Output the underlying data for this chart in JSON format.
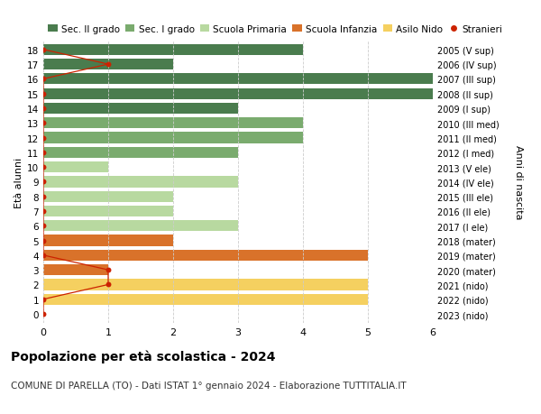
{
  "ages": [
    18,
    17,
    16,
    15,
    14,
    13,
    12,
    11,
    10,
    9,
    8,
    7,
    6,
    5,
    4,
    3,
    2,
    1,
    0
  ],
  "right_labels": [
    "2005 (V sup)",
    "2006 (IV sup)",
    "2007 (III sup)",
    "2008 (II sup)",
    "2009 (I sup)",
    "2010 (III med)",
    "2011 (II med)",
    "2012 (I med)",
    "2013 (V ele)",
    "2014 (IV ele)",
    "2015 (III ele)",
    "2016 (II ele)",
    "2017 (I ele)",
    "2018 (mater)",
    "2019 (mater)",
    "2020 (mater)",
    "2021 (nido)",
    "2022 (nido)",
    "2023 (nido)"
  ],
  "bar_values": [
    4,
    2,
    6,
    6,
    3,
    4,
    4,
    3,
    1,
    3,
    2,
    2,
    3,
    2,
    5,
    1,
    5,
    5,
    0
  ],
  "bar_colors": [
    "#4a7c4e",
    "#4a7c4e",
    "#4a7c4e",
    "#4a7c4e",
    "#4a7c4e",
    "#7aab6e",
    "#7aab6e",
    "#7aab6e",
    "#b8d9a0",
    "#b8d9a0",
    "#b8d9a0",
    "#b8d9a0",
    "#b8d9a0",
    "#d9722a",
    "#d9722a",
    "#d9722a",
    "#f5d060",
    "#f5d060",
    "#f5d060"
  ],
  "stranieri_values": [
    0,
    1,
    0,
    0,
    0,
    0,
    0,
    0,
    0,
    0,
    0,
    0,
    0,
    0,
    0,
    1,
    1,
    0,
    0
  ],
  "title": "Popolazione per età scolastica - 2024",
  "subtitle": "COMUNE DI PARELLA (TO) - Dati ISTAT 1° gennaio 2024 - Elaborazione TUTTITALIA.IT",
  "ylabel": "Età alunni",
  "right_ylabel": "Anni di nascita",
  "xlim": [
    0,
    6
  ],
  "xticks": [
    0,
    1,
    2,
    3,
    4,
    5,
    6
  ],
  "legend_labels": [
    "Sec. II grado",
    "Sec. I grado",
    "Scuola Primaria",
    "Scuola Infanzia",
    "Asilo Nido",
    "Stranieri"
  ],
  "legend_colors": [
    "#4a7c4e",
    "#7aab6e",
    "#b8d9a0",
    "#d9722a",
    "#f5d060",
    "#cc2200"
  ],
  "color_stranieri": "#cc2200",
  "bg_color": "#ffffff",
  "grid_color": "#cccccc"
}
